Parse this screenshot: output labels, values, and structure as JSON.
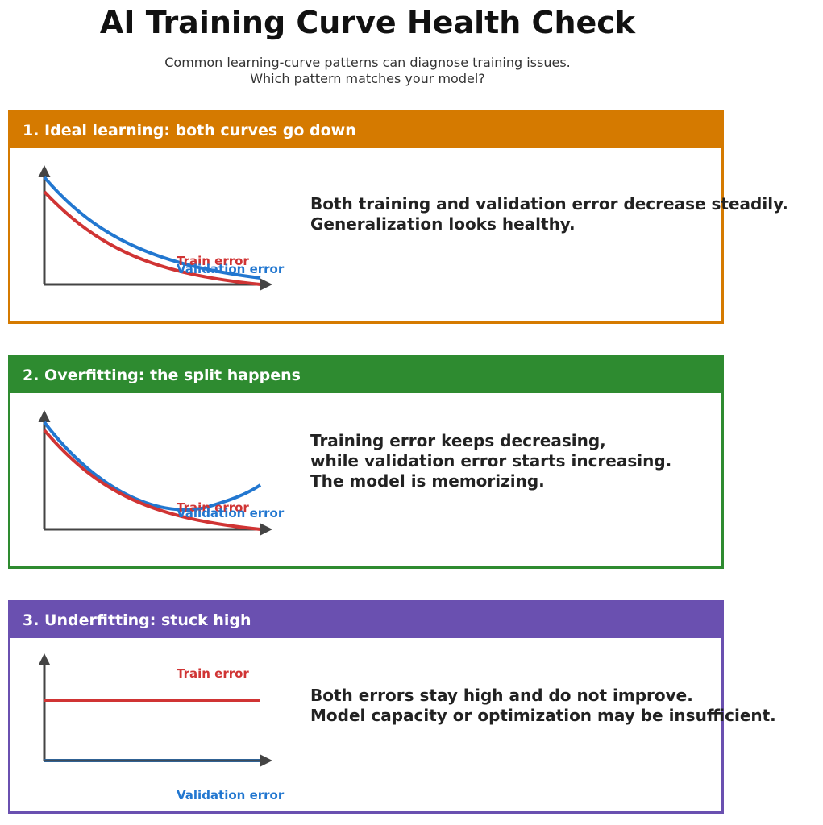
{
  "title": "AI Training Curve Health Check",
  "subtitle": [
    "Common learning-curve patterns can diagnose training issues.",
    "Which pattern matches your model?"
  ],
  "colors": {
    "train": "#d03434",
    "validation": "#2277d0",
    "axis": "#444444"
  },
  "panels": [
    {
      "header": "1. Ideal learning: both curves go down",
      "color": "#d57a00",
      "description": [
        "Both training and validation error decrease steadily.",
        "Generalization looks healthy."
      ],
      "train_label": "Train error",
      "validation_label": "Validation error"
    },
    {
      "header": "2. Overfitting: the split happens",
      "color": "#2e8b30",
      "description": [
        "Training error keeps decreasing,",
        "while validation error starts increasing.",
        "The model is memorizing."
      ],
      "train_label": "Train error",
      "validation_label": "Validation error"
    },
    {
      "header": "3. Underfitting: stuck high",
      "color": "#6a50b0",
      "description": [
        "Both errors stay high and do not improve.",
        "Model capacity or optimization may be insufficient."
      ],
      "train_label": "Train error",
      "validation_label": "Validation error"
    }
  ]
}
